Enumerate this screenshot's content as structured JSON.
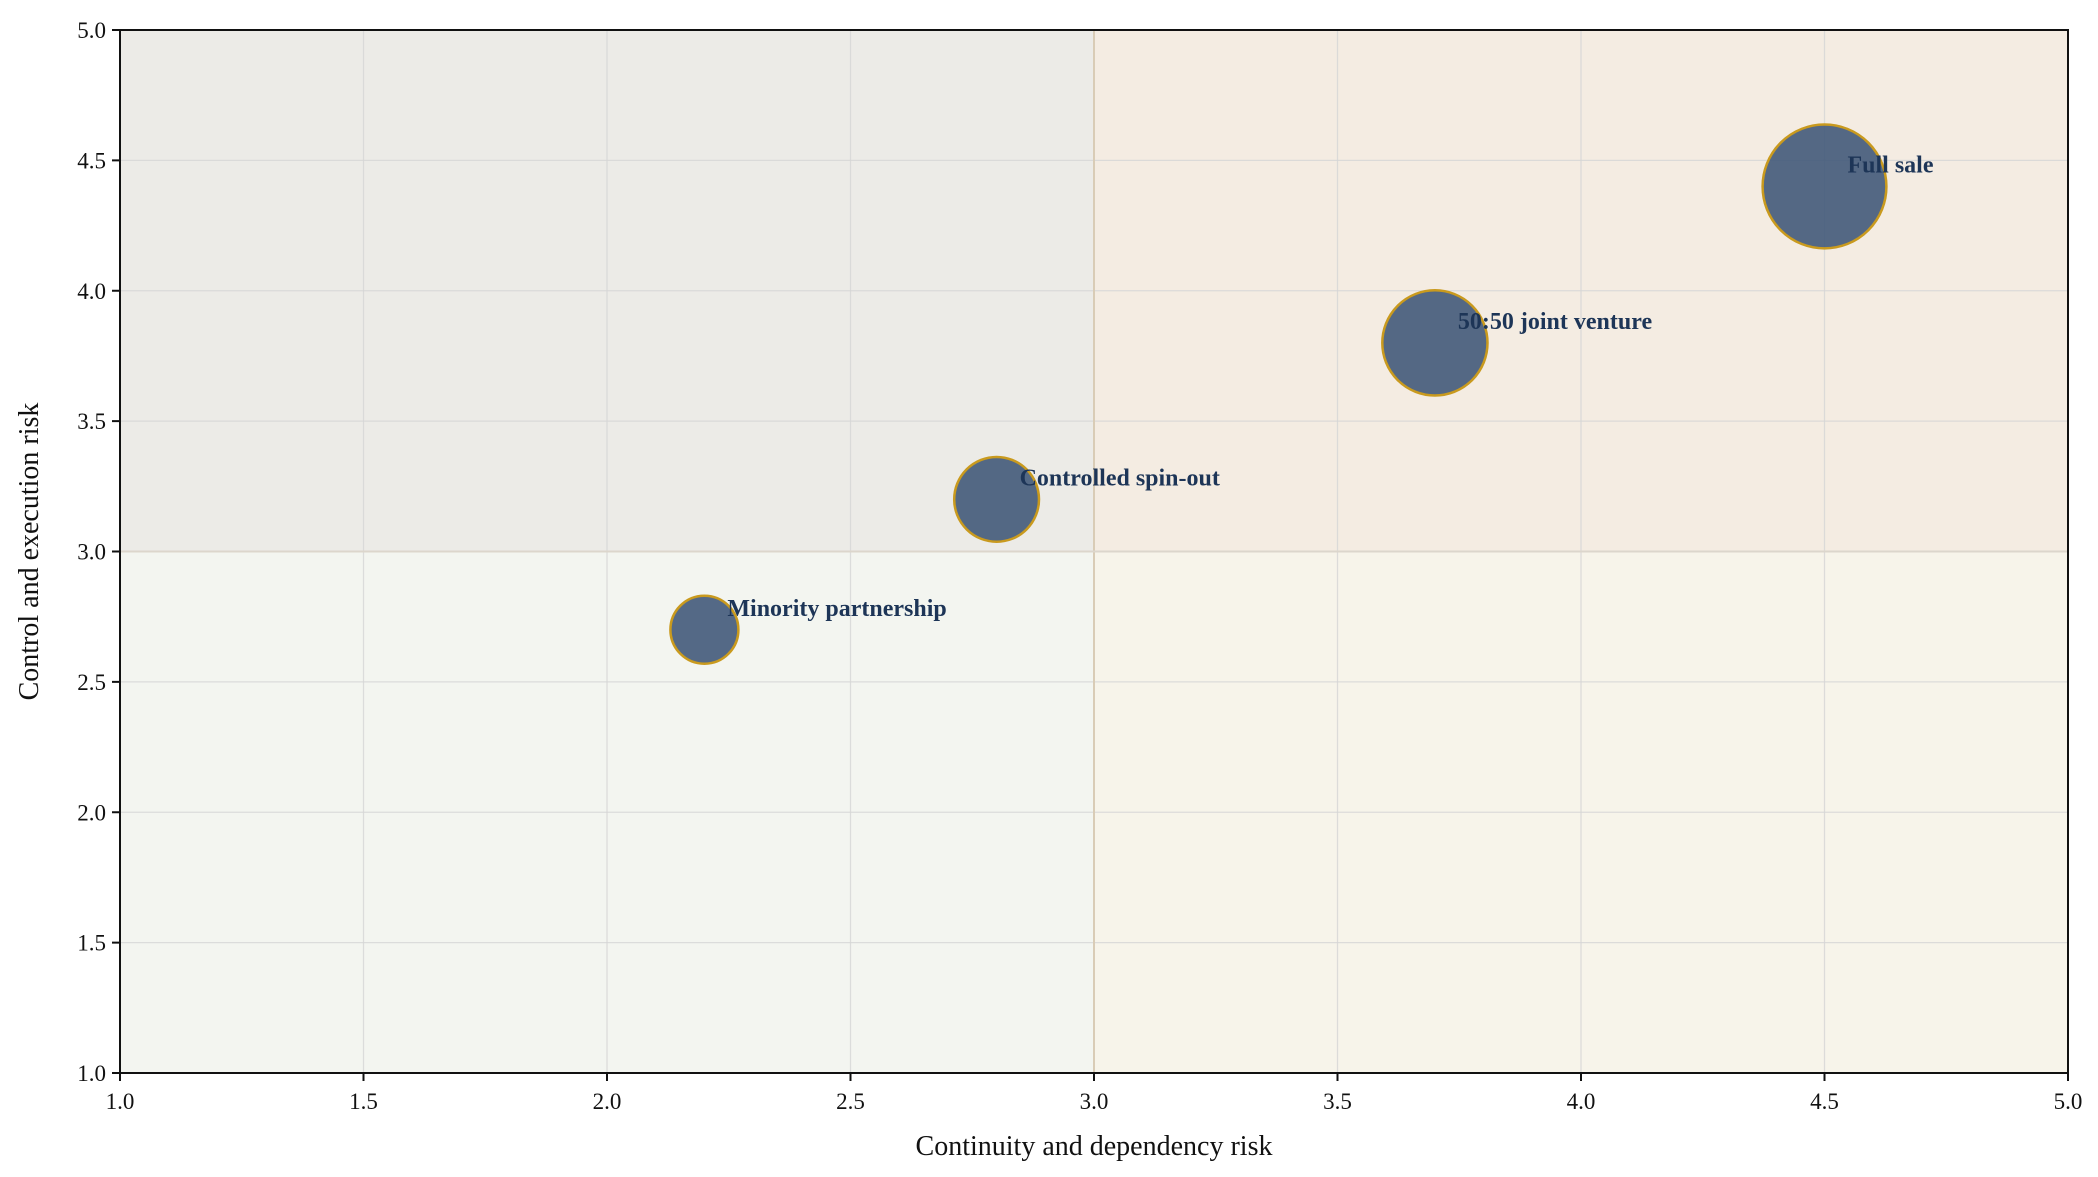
{
  "chart_data": {
    "type": "scatter",
    "title": "",
    "xlabel": "Continuity and dependency risk",
    "ylabel": "Control and execution risk",
    "xlim": [
      1.0,
      5.0
    ],
    "ylim": [
      1.0,
      5.0
    ],
    "x_ticks": [
      "1.0",
      "1.5",
      "2.0",
      "2.5",
      "3.0",
      "3.5",
      "4.0",
      "4.5",
      "5.0"
    ],
    "y_ticks": [
      "1.0",
      "1.5",
      "2.0",
      "2.5",
      "3.0",
      "3.5",
      "4.0",
      "4.5",
      "5.0"
    ],
    "grid": true,
    "divider": {
      "x": 3.0,
      "y": 3.0
    },
    "quadrant_colors": {
      "top_left": "#ecebe7",
      "top_right": "#f4ece2",
      "bottom_left": "#f3f5f0",
      "bottom_right": "#f7f4ea"
    },
    "bubble_fill": "#3d5576",
    "bubble_edge": "#c99a1e",
    "label_color": "#1d3557",
    "points": [
      {
        "label": "Minority partnership",
        "x": 2.2,
        "y": 2.7,
        "size": 1
      },
      {
        "label": "Controlled spin-out",
        "x": 2.8,
        "y": 3.2,
        "size": 2
      },
      {
        "label": "50:50 joint venture",
        "x": 3.7,
        "y": 3.8,
        "size": 3
      },
      {
        "label": "Full sale",
        "x": 4.5,
        "y": 4.4,
        "size": 4
      }
    ]
  }
}
